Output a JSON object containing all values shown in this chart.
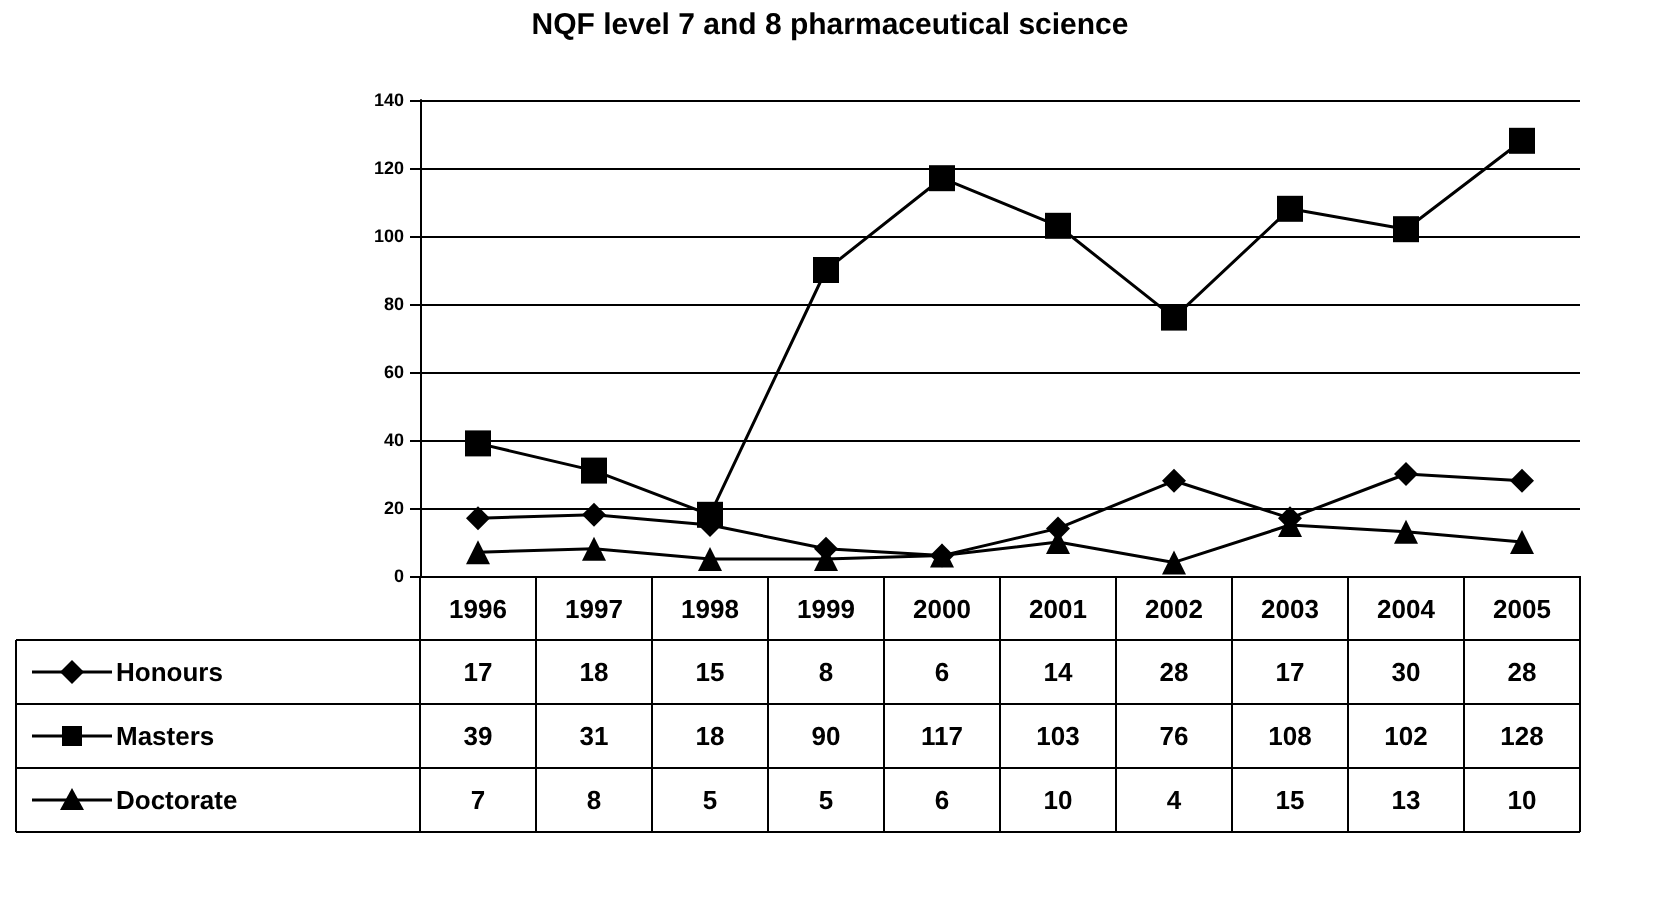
{
  "chart_data": {
    "type": "line",
    "title": "NQF level 7 and 8 pharmaceutical science",
    "categories": [
      "1996",
      "1997",
      "1998",
      "1999",
      "2000",
      "2001",
      "2002",
      "2003",
      "2004",
      "2005"
    ],
    "series": [
      {
        "name": "Honours",
        "color": "#000000",
        "marker": "diamond",
        "values": [
          17,
          18,
          15,
          8,
          6,
          14,
          28,
          17,
          30,
          28
        ]
      },
      {
        "name": "Masters",
        "color": "#000000",
        "marker": "square",
        "values": [
          39,
          31,
          18,
          90,
          117,
          103,
          76,
          108,
          102,
          128
        ]
      },
      {
        "name": "Doctorate",
        "color": "#000000",
        "marker": "triangle",
        "values": [
          7,
          8,
          5,
          5,
          6,
          10,
          4,
          15,
          13,
          10
        ]
      }
    ],
    "ylim": [
      0,
      140
    ],
    "yticks": [
      0,
      20,
      40,
      60,
      80,
      100,
      120,
      140
    ],
    "grid": "y",
    "legend": "bottom",
    "data_labels": true,
    "line_style": "solid"
  }
}
